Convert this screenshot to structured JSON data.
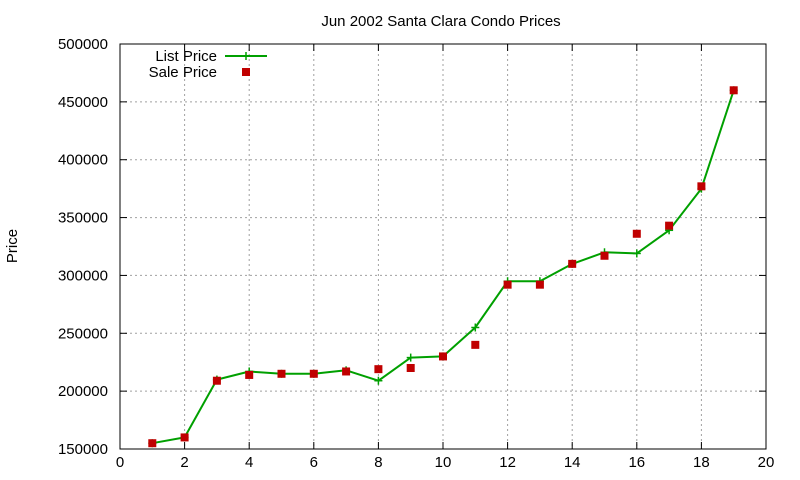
{
  "chart_data": {
    "type": "line",
    "title": "Jun 2002 Santa Clara Condo Prices",
    "xlabel": "",
    "ylabel": "Price",
    "xlim": [
      0,
      20
    ],
    "ylim": [
      150000,
      500000
    ],
    "xticks": [
      0,
      2,
      4,
      6,
      8,
      10,
      12,
      14,
      16,
      18,
      20
    ],
    "yticks": [
      150000,
      200000,
      250000,
      300000,
      350000,
      400000,
      450000,
      500000
    ],
    "grid": true,
    "legend_position": "top-left",
    "series": [
      {
        "name": "List Price",
        "style": "lines+points",
        "marker": "plus",
        "color": "#00a000",
        "x": [
          1,
          2,
          3,
          4,
          5,
          6,
          7,
          8,
          9,
          10,
          11,
          12,
          13,
          14,
          15,
          16,
          17,
          18,
          19
        ],
        "y": [
          155000,
          160000,
          210000,
          217000,
          215000,
          215000,
          218000,
          209000,
          229000,
          230000,
          255000,
          295000,
          295000,
          310000,
          320000,
          319000,
          339000,
          375000,
          460000
        ]
      },
      {
        "name": "Sale Price",
        "style": "points",
        "marker": "square",
        "color": "#c00000",
        "x": [
          1,
          2,
          3,
          4,
          5,
          6,
          7,
          8,
          9,
          10,
          11,
          12,
          13,
          14,
          15,
          16,
          17,
          18,
          19
        ],
        "y": [
          155000,
          160000,
          209000,
          214000,
          215000,
          215000,
          217000,
          219000,
          220000,
          230000,
          240000,
          292000,
          292000,
          310000,
          317000,
          336000,
          343000,
          377000,
          460000
        ]
      }
    ]
  }
}
